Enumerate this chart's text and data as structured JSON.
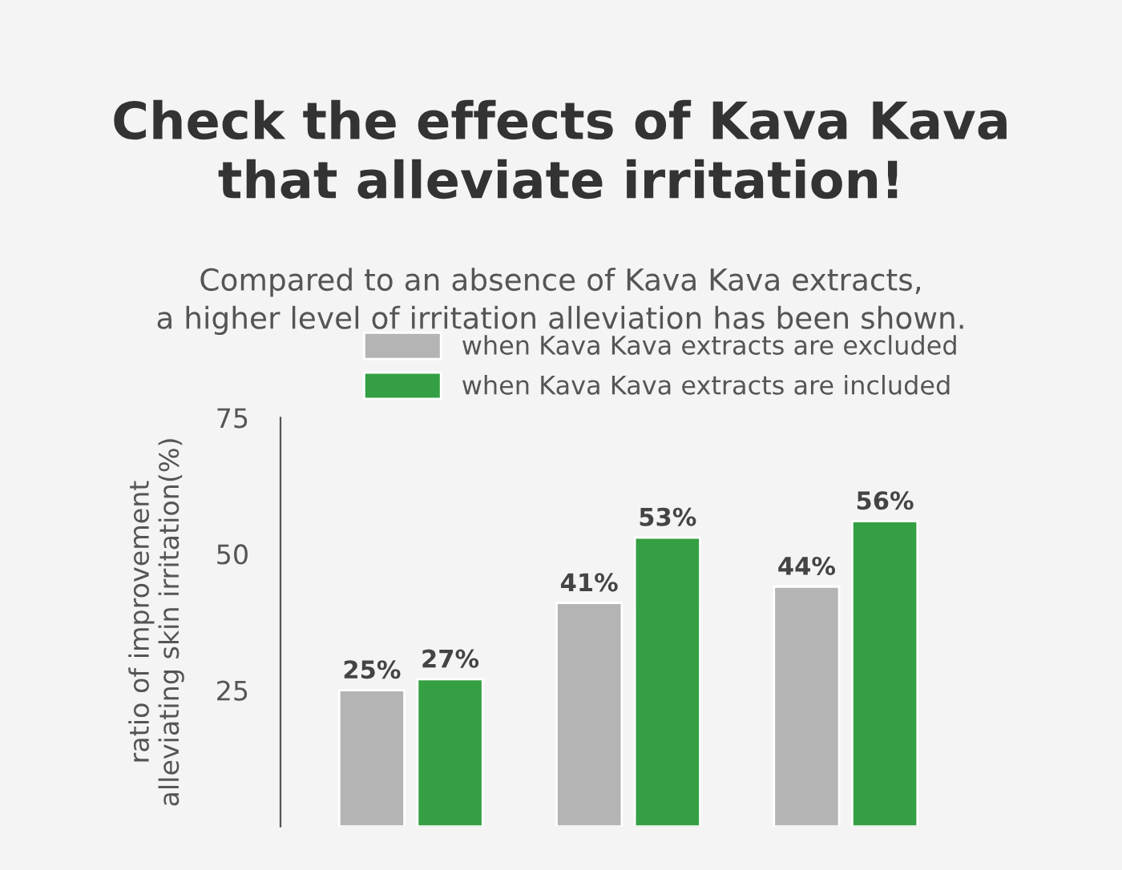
{
  "chart_data": {
    "type": "bar",
    "title": "Check the effects of Kava Kava\nthat alleviate irritation!",
    "subtitle": "Compared to an absence of Kava Kava extracts,\na higher level of irritation alleviation has been shown.",
    "ylabel": "ratio of improvement\nalleviating skin irritation(%)",
    "categories": [
      null,
      null,
      null
    ],
    "series": [
      {
        "name": "when Kava Kava extracts are excluded",
        "color": "#b4b4b4",
        "values": [
          25,
          41,
          44
        ],
        "value_labels": [
          "25%",
          "41%",
          "44%"
        ]
      },
      {
        "name": "when Kava Kava extracts are included",
        "color": "#34a043",
        "values": [
          27,
          53,
          56
        ],
        "value_labels": [
          "27%",
          "53%",
          "56%"
        ]
      }
    ],
    "ylim": [
      0,
      75
    ],
    "yticks": [
      25,
      50,
      75
    ],
    "legend": "top right",
    "grid": false
  }
}
